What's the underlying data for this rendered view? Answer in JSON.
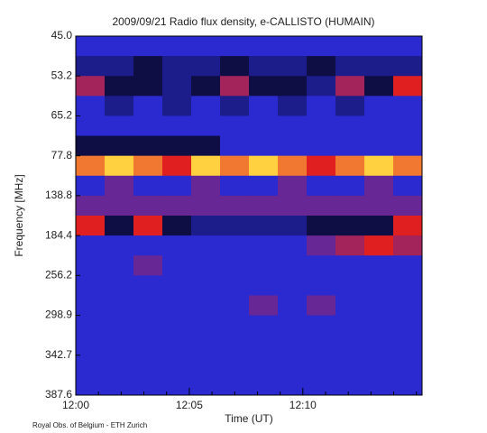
{
  "chart_data": {
    "type": "spectrogram",
    "title": "2009/09/21  Radio flux density, e-CALLISTO (HUMAIN)",
    "ylabel": "Frequency [MHz]",
    "xlabel": "Time (UT)",
    "footer": "Royal Obs. of Belgium - ETH Zurich",
    "y_categories": [
      "45.0",
      "53.2",
      "65.2",
      "77.8",
      "138.8",
      "184.4",
      "256.2",
      "298.9",
      "342.7",
      "387.6"
    ],
    "xlim": [
      0,
      15.25
    ],
    "xticks": [
      {
        "value": 0,
        "label": "12:00"
      },
      {
        "value": 5,
        "label": "12:05"
      },
      {
        "value": 10,
        "label": "12:10"
      }
    ],
    "xminorticks": [
      1,
      2,
      3,
      4,
      6,
      7,
      8,
      9,
      11,
      12,
      13,
      14,
      15
    ],
    "zlim": [
      0,
      9
    ],
    "colorscale": [
      [
        0,
        "#000000"
      ],
      [
        3,
        "#2a2ad0"
      ],
      [
        6,
        "#e02020"
      ],
      [
        8,
        "#ffd040"
      ],
      [
        9,
        "#ffffff"
      ]
    ],
    "z": [
      [
        3,
        3,
        3,
        3,
        3,
        3,
        3,
        3,
        3,
        3,
        3,
        3
      ],
      [
        2,
        2,
        1,
        2,
        2,
        1,
        2,
        2,
        1,
        2,
        2,
        2
      ],
      [
        5,
        1,
        1,
        2,
        1,
        5,
        1,
        1,
        2,
        5,
        1,
        6
      ],
      [
        3,
        2,
        3,
        2,
        3,
        2,
        3,
        2,
        3,
        2,
        3,
        3
      ],
      [
        3,
        3,
        3,
        3,
        3,
        3,
        3,
        3,
        3,
        3,
        3,
        3
      ],
      [
        1,
        1,
        1,
        1,
        1,
        3,
        3,
        3,
        3,
        3,
        3,
        3
      ],
      [
        7,
        8,
        7,
        6,
        8,
        7,
        8,
        7,
        6,
        7,
        8,
        7
      ],
      [
        3,
        4,
        3,
        3,
        4,
        3,
        3,
        4,
        3,
        3,
        4,
        3
      ],
      [
        4,
        4,
        4,
        4,
        4,
        4,
        4,
        4,
        4,
        4,
        4,
        4
      ],
      [
        6,
        1,
        6,
        1,
        2,
        2,
        2,
        2,
        1,
        1,
        1,
        6
      ],
      [
        3,
        3,
        3,
        3,
        3,
        3,
        3,
        3,
        4,
        5,
        6,
        5
      ],
      [
        3,
        3,
        4,
        3,
        3,
        3,
        3,
        3,
        3,
        3,
        3,
        3
      ],
      [
        3,
        3,
        3,
        3,
        3,
        3,
        3,
        3,
        3,
        3,
        3,
        3
      ],
      [
        3,
        3,
        3,
        3,
        3,
        3,
        4,
        3,
        4,
        3,
        3,
        3
      ],
      [
        3,
        3,
        3,
        3,
        3,
        3,
        3,
        3,
        3,
        3,
        3,
        3
      ],
      [
        3,
        3,
        3,
        3,
        3,
        3,
        3,
        3,
        3,
        3,
        3,
        3
      ],
      [
        3,
        3,
        3,
        3,
        3,
        3,
        3,
        3,
        3,
        3,
        3,
        3
      ],
      [
        3,
        3,
        3,
        3,
        3,
        3,
        3,
        3,
        3,
        3,
        3,
        3
      ]
    ]
  }
}
